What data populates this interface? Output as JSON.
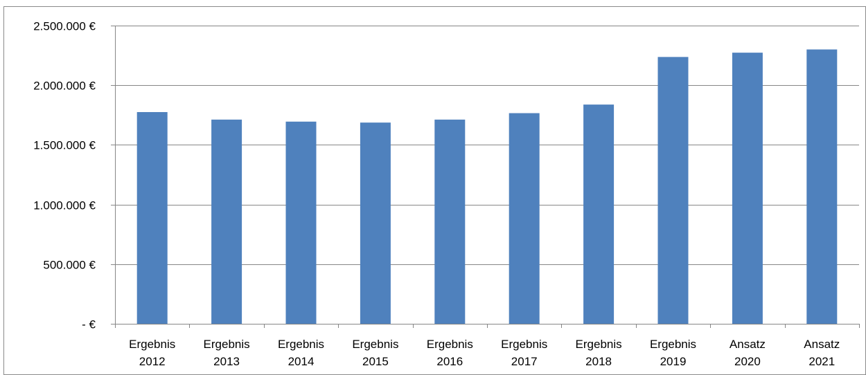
{
  "chart_data": {
    "type": "bar",
    "title": "",
    "xlabel": "",
    "ylabel": "",
    "categories": [
      [
        "Ergebnis",
        "2012"
      ],
      [
        "Ergebnis",
        "2013"
      ],
      [
        "Ergebnis",
        "2014"
      ],
      [
        "Ergebnis",
        "2015"
      ],
      [
        "Ergebnis",
        "2016"
      ],
      [
        "Ergebnis",
        "2017"
      ],
      [
        "Ergebnis",
        "2018"
      ],
      [
        "Ergebnis",
        "2019"
      ],
      [
        "Ansatz",
        "2020"
      ],
      [
        "Ansatz",
        "2021"
      ]
    ],
    "values": [
      1775000,
      1712000,
      1695000,
      1687000,
      1712000,
      1766000,
      1838000,
      2237000,
      2273000,
      2300000
    ],
    "ylim": [
      0,
      2500000
    ],
    "y_ticks": [
      0,
      500000,
      1000000,
      1500000,
      2000000,
      2500000
    ],
    "y_tick_labels": [
      "-  €",
      "500.000 €",
      "1.000.000 €",
      "1.500.000 €",
      "2.000.000 €",
      "2.500.000 €"
    ],
    "grid": true,
    "legend": "none",
    "colors": {
      "bar": "#4F81BD",
      "grid": "#868686",
      "axis": "#868686",
      "frame": "#8a8a8a"
    }
  }
}
